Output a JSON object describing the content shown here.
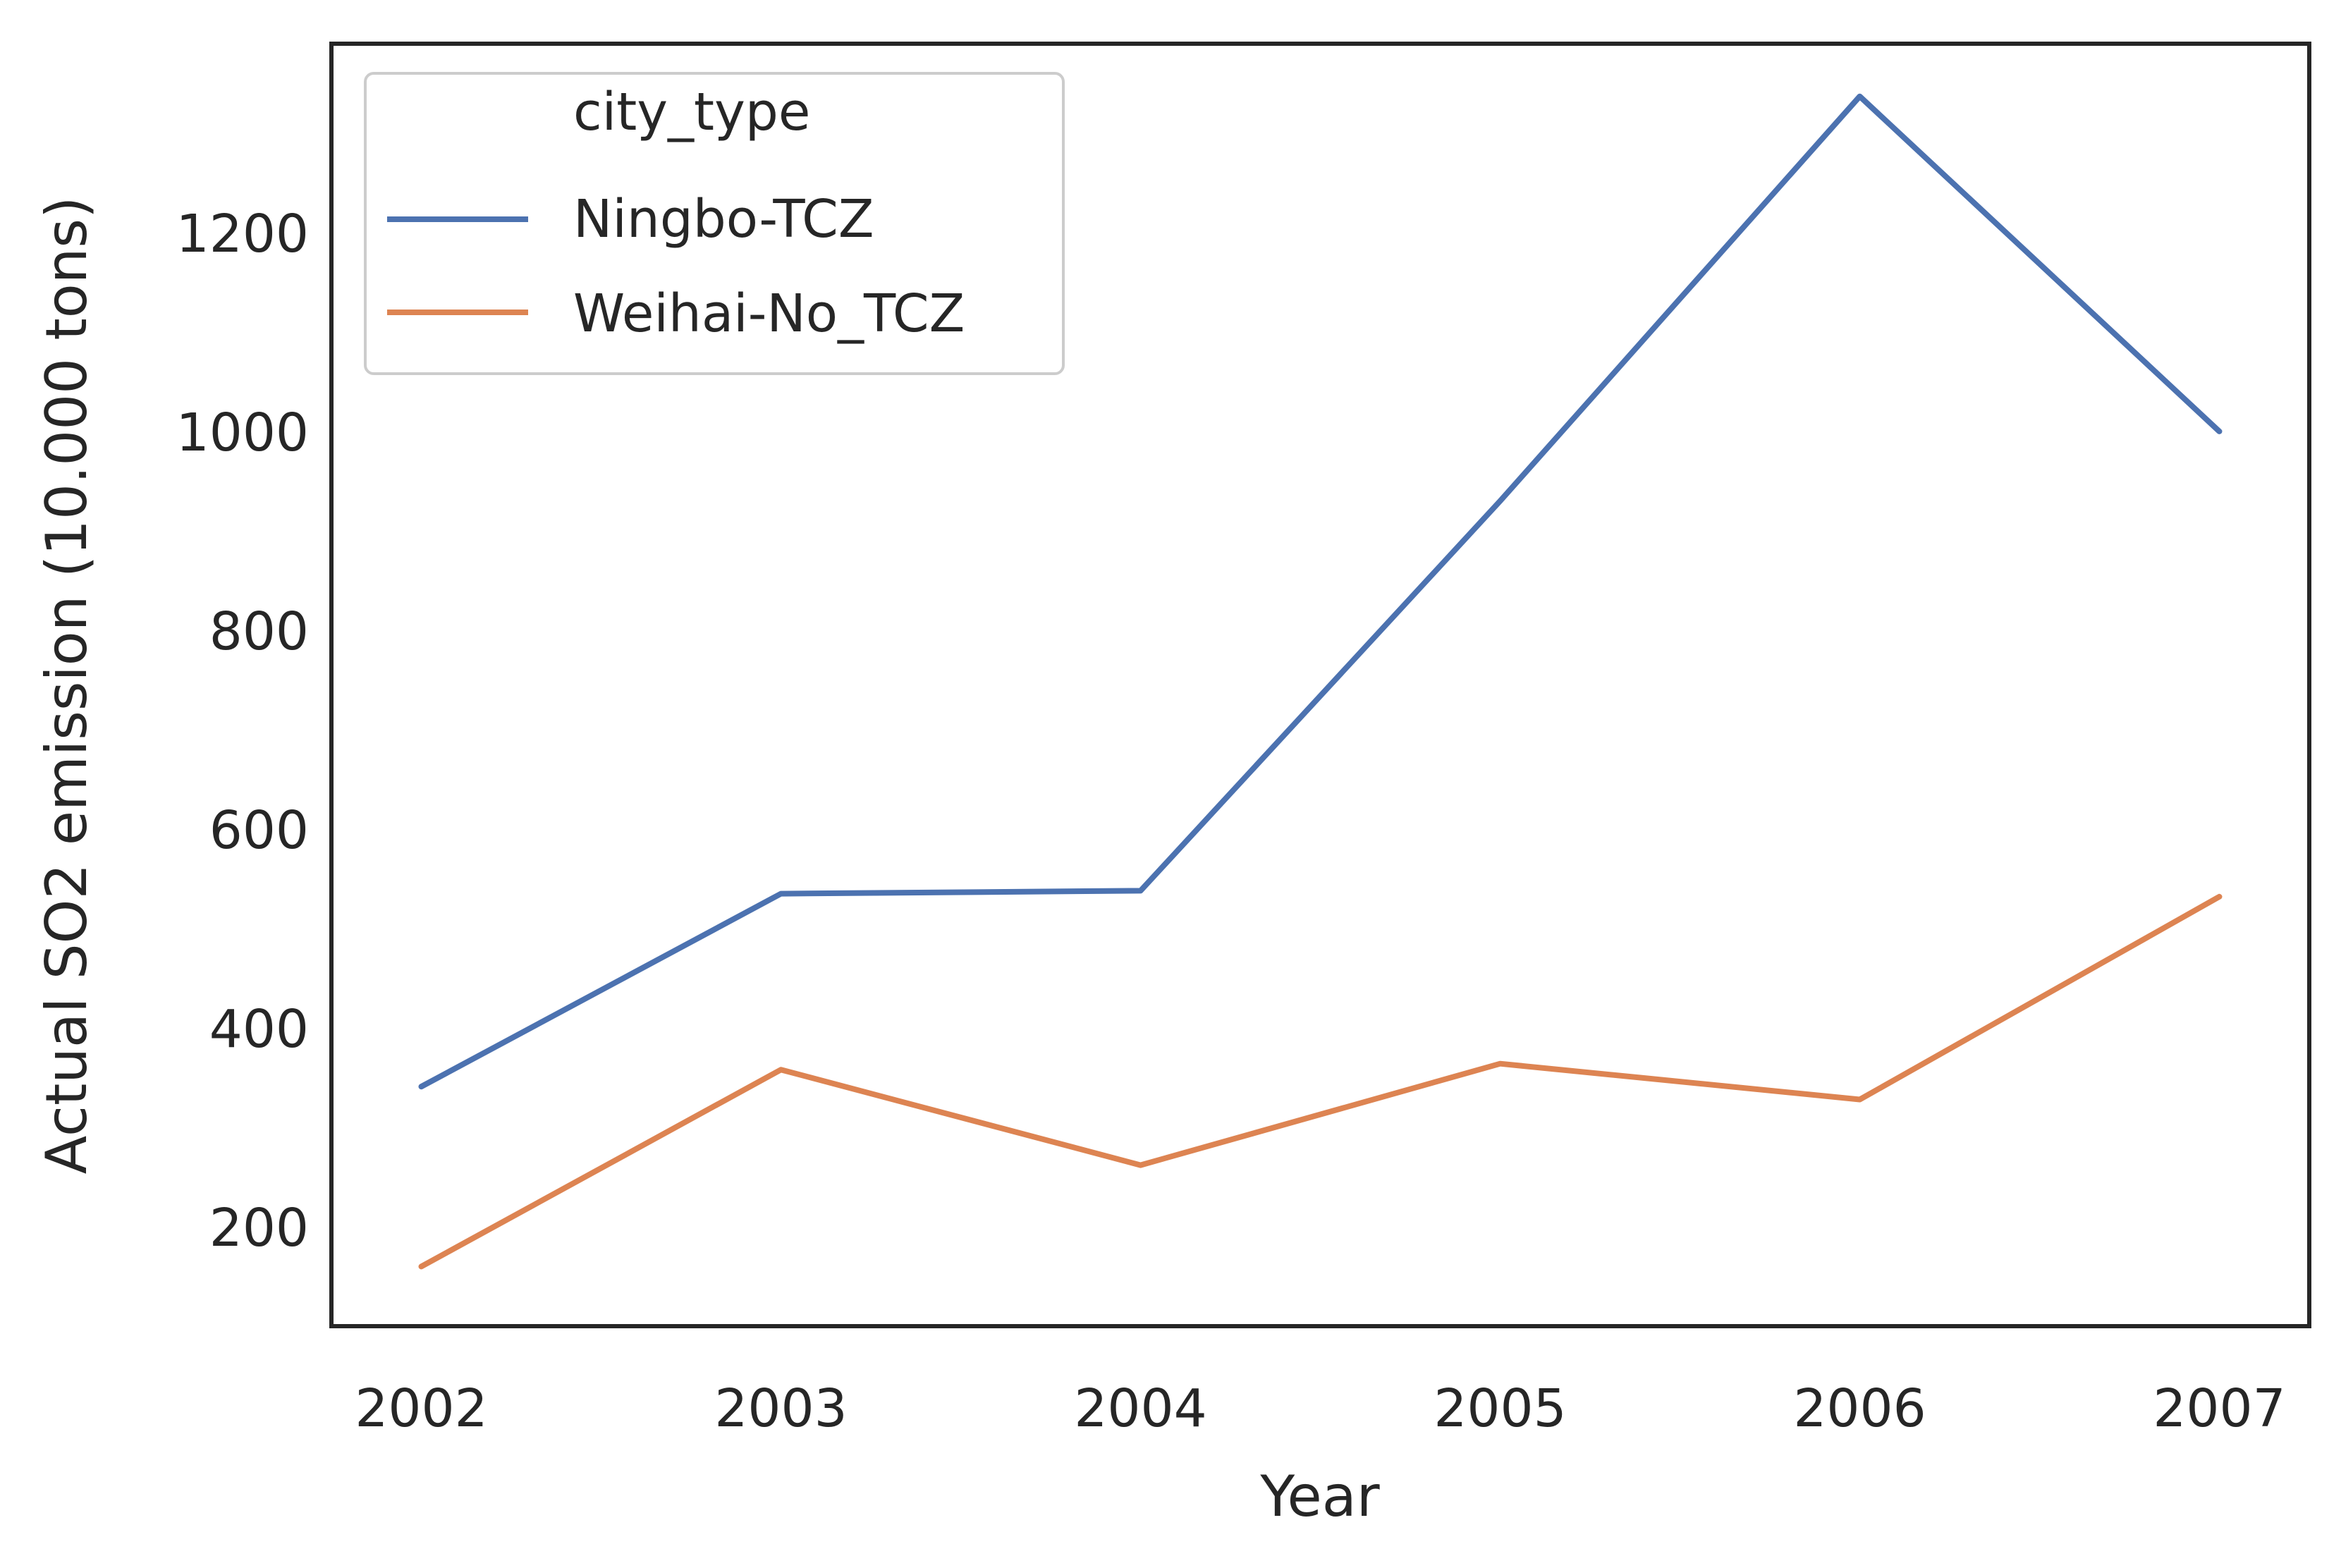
{
  "chart_data": {
    "type": "line",
    "title": "",
    "xlabel": "Year",
    "ylabel": "Actual SO2 emission (10.000 tons)",
    "x": [
      2002,
      2003,
      2004,
      2005,
      2006,
      2007
    ],
    "xticks": [
      "2002",
      "2003",
      "2004",
      "2005",
      "2006",
      "2007"
    ],
    "yticks": [
      200,
      400,
      600,
      800,
      1000,
      1200
    ],
    "ylim": [
      100,
      1390
    ],
    "xlim": [
      2001.75,
      2007.25
    ],
    "grid": false,
    "legend": {
      "title": "city_type",
      "placement": "upper-left"
    },
    "series": [
      {
        "name": "Ningbo-TCZ",
        "color": "#4c72b0",
        "values": [
          341,
          535,
          538,
          930,
          1337,
          1000
        ]
      },
      {
        "name": "Weihai-No_TCZ",
        "color": "#dd8452",
        "values": [
          160,
          358,
          262,
          364,
          328,
          532
        ]
      }
    ]
  }
}
